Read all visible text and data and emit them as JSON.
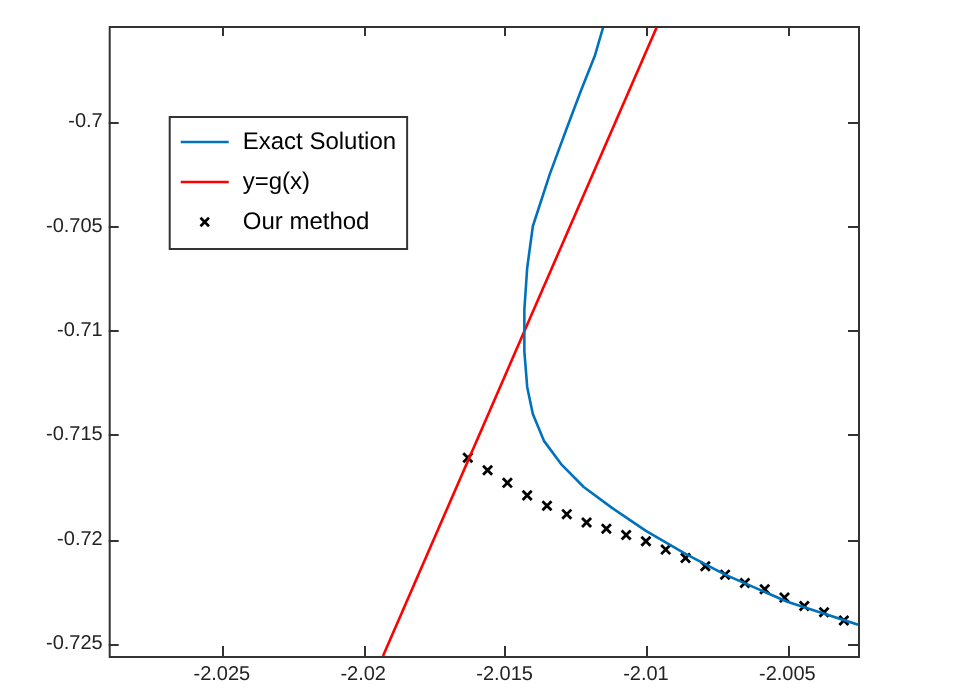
{
  "chart_data": {
    "type": "line",
    "xlim": [
      -2.029,
      -2.0025
    ],
    "ylim": [
      -0.7256,
      -0.6954
    ],
    "xticks": [
      -2.025,
      -2.02,
      -2.015,
      -2.01,
      -2.005
    ],
    "yticks": [
      -0.725,
      -0.72,
      -0.715,
      -0.71,
      -0.705,
      -0.7
    ],
    "grid": false,
    "legend": "top left",
    "series": [
      {
        "name": "Exact Solution",
        "marker": "none",
        "color": "#0072bd",
        "x": [
          -2.0115,
          -2.0118,
          -2.0123,
          -2.0128,
          -2.0134,
          -2.014,
          -2.0142,
          -2.0143,
          -2.0143,
          -2.0142,
          -2.014,
          -2.0136,
          -2.013,
          -2.0122,
          -2.0112,
          -2.01,
          -2.0086,
          -2.0072,
          -2.005,
          -2.0025
        ],
        "values": [
          -0.6954,
          -0.6968,
          -0.6985,
          -0.7003,
          -0.7025,
          -0.705,
          -0.707,
          -0.709,
          -0.711,
          -0.7127,
          -0.714,
          -0.7153,
          -0.7164,
          -0.7175,
          -0.7185,
          -0.7196,
          -0.7207,
          -0.7217,
          -0.723,
          -0.7241
        ]
      },
      {
        "name": "y=g(x)",
        "marker": "none",
        "color": "#ff0000",
        "x": [
          -2.0193,
          -2.0096
        ],
        "values": [
          -0.7256,
          -0.6954
        ]
      },
      {
        "name": "Our method",
        "type": "scatter",
        "marker": "cross",
        "color": "#000000",
        "x": [
          -2.0163,
          -2.0156,
          -2.0149,
          -2.0142,
          -2.0135,
          -2.0128,
          -2.0121,
          -2.0114,
          -2.0107,
          -2.01,
          -2.0093,
          -2.0086,
          -2.0079,
          -2.0072,
          -2.0065,
          -2.0058,
          -2.0051,
          -2.0044,
          -2.0037,
          -2.003
        ],
        "values": [
          -0.7161,
          -0.7167,
          -0.7173,
          -0.7179,
          -0.7184,
          -0.7188,
          -0.7192,
          -0.7195,
          -0.7198,
          -0.7201,
          -0.7205,
          -0.7209,
          -0.7213,
          -0.7217,
          -0.7221,
          -0.7224,
          -0.7228,
          -0.7232,
          -0.7235,
          -0.7239
        ]
      }
    ]
  }
}
